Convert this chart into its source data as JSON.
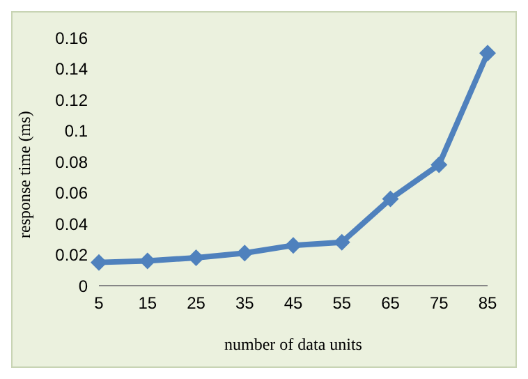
{
  "chart_data": {
    "type": "line",
    "xlabel": "number of data units",
    "ylabel": "response time (ms)",
    "categories": [
      "5",
      "15",
      "25",
      "35",
      "45",
      "55",
      "65",
      "75",
      "85"
    ],
    "series": [
      {
        "color": "#4f81bd",
        "values": [
          0.015,
          0.016,
          0.018,
          0.021,
          0.026,
          0.028,
          0.056,
          0.078,
          0.15
        ]
      }
    ],
    "ylim": [
      0,
      0.16
    ],
    "yticks": [
      0,
      0.02,
      0.04,
      0.06,
      0.08,
      0.1,
      0.12,
      0.14,
      0.16
    ],
    "grid": false,
    "legend": false,
    "marker": "diamond",
    "line_style": "solid"
  }
}
